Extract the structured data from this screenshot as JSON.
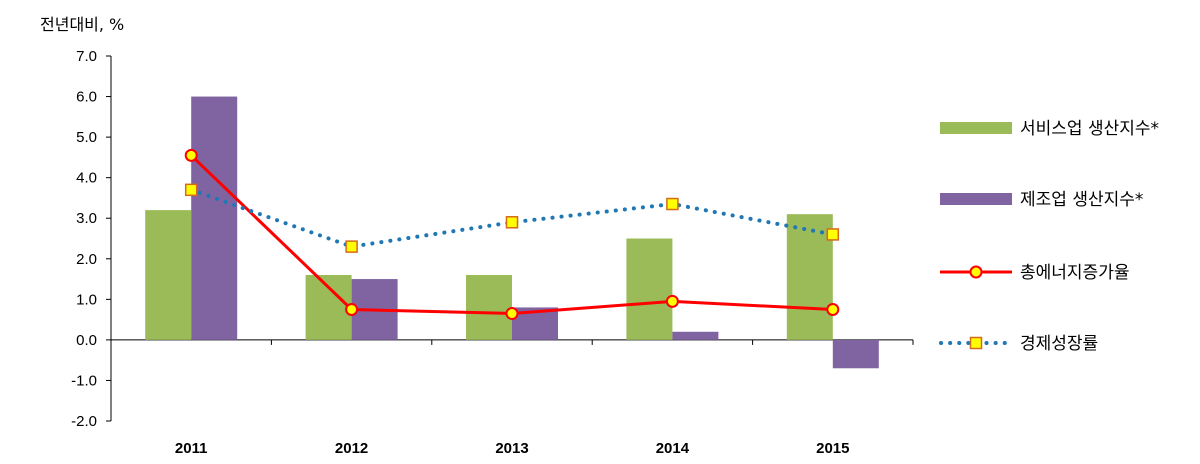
{
  "chart_data": {
    "type": "bar",
    "ylabel": "전년대비, %",
    "ylim": [
      -2.0,
      7.0
    ],
    "yticks": [
      "7.0",
      "6.0",
      "5.0",
      "4.0",
      "3.0",
      "2.0",
      "1.0",
      "0.0",
      "-1.0",
      "-2.0"
    ],
    "categories": [
      "2011",
      "2012",
      "2013",
      "2014",
      "2015"
    ],
    "legend_position": "right",
    "series": [
      {
        "name": "서비스업 생산지수*",
        "kind": "bar",
        "color": "#9BBB59",
        "values": [
          3.2,
          1.6,
          1.6,
          2.5,
          3.1
        ]
      },
      {
        "name": "제조업 생산지수*",
        "kind": "bar",
        "color": "#8064A2",
        "values": [
          6.0,
          1.5,
          0.8,
          0.2,
          -0.7
        ]
      },
      {
        "name": "총에너지증가율",
        "kind": "line",
        "color": "#FF0000",
        "marker": "circle",
        "marker_fill": "#FFFF00",
        "values": [
          4.55,
          0.75,
          0.65,
          0.95,
          0.75
        ]
      },
      {
        "name": "경제성장률",
        "kind": "dotted-line",
        "color": "#1F77B4",
        "marker": "square",
        "marker_fill": "#FFFF00",
        "values": [
          3.7,
          2.3,
          2.9,
          3.35,
          2.6
        ]
      }
    ]
  }
}
